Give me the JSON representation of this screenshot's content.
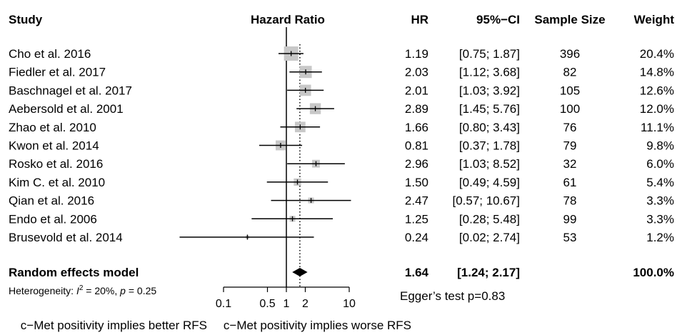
{
  "chart_data": {
    "type": "forest",
    "title": "",
    "headers": {
      "study": "Study",
      "effect": "Hazard Ratio",
      "hr": "HR",
      "ci": "95%−CI",
      "sample": "Sample Size",
      "weight": "Weight"
    },
    "studies": [
      {
        "name": "Cho et al. 2016",
        "hr": 1.19,
        "lo": 0.75,
        "hi": 1.87,
        "hr_text": "1.19",
        "ci_text": "[0.75; 1.87]",
        "n": "396",
        "w": 20.4,
        "w_text": "20.4%"
      },
      {
        "name": "Fiedler et al. 2017",
        "hr": 2.03,
        "lo": 1.12,
        "hi": 3.68,
        "hr_text": "2.03",
        "ci_text": "[1.12; 3.68]",
        "n": "82",
        "w": 14.8,
        "w_text": "14.8%"
      },
      {
        "name": "Baschnagel et al. 2017",
        "hr": 2.01,
        "lo": 1.03,
        "hi": 3.92,
        "hr_text": "2.01",
        "ci_text": "[1.03; 3.92]",
        "n": "105",
        "w": 12.6,
        "w_text": "12.6%"
      },
      {
        "name": "Aebersold et al. 2001",
        "hr": 2.89,
        "lo": 1.45,
        "hi": 5.76,
        "hr_text": "2.89",
        "ci_text": "[1.45; 5.76]",
        "n": "100",
        "w": 12.0,
        "w_text": "12.0%"
      },
      {
        "name": "Zhao et al. 2010",
        "hr": 1.66,
        "lo": 0.8,
        "hi": 3.43,
        "hr_text": "1.66",
        "ci_text": "[0.80; 3.43]",
        "n": "76",
        "w": 11.1,
        "w_text": "11.1%"
      },
      {
        "name": "Kwon et al. 2014",
        "hr": 0.81,
        "lo": 0.37,
        "hi": 1.78,
        "hr_text": "0.81",
        "ci_text": "[0.37; 1.78]",
        "n": "79",
        "w": 9.8,
        "w_text": "9.8%"
      },
      {
        "name": "Rosko et al. 2016",
        "hr": 2.96,
        "lo": 1.03,
        "hi": 8.52,
        "hr_text": "2.96",
        "ci_text": "[1.03; 8.52]",
        "n": "32",
        "w": 6.0,
        "w_text": "6.0%"
      },
      {
        "name": "Kim C. et al. 2010",
        "hr": 1.5,
        "lo": 0.49,
        "hi": 4.59,
        "hr_text": "1.50",
        "ci_text": "[0.49; 4.59]",
        "n": "61",
        "w": 5.4,
        "w_text": "5.4%"
      },
      {
        "name": "Qian et al. 2016",
        "hr": 2.47,
        "lo": 0.57,
        "hi": 10.67,
        "hr_text": "2.47",
        "ci_text": "[0.57; 10.67]",
        "n": "78",
        "w": 3.3,
        "w_text": "3.3%"
      },
      {
        "name": "Endo et al. 2006",
        "hr": 1.25,
        "lo": 0.28,
        "hi": 5.48,
        "hr_text": "1.25",
        "ci_text": "[0.28; 5.48]",
        "n": "99",
        "w": 3.3,
        "w_text": "3.3%"
      },
      {
        "name": "Brusevold et al. 2014",
        "hr": 0.24,
        "lo": 0.02,
        "hi": 2.74,
        "hr_text": "0.24",
        "ci_text": "[0.02; 2.74]",
        "n": "53",
        "w": 1.2,
        "w_text": "1.2%"
      }
    ],
    "pooled": {
      "name": "Random effects model",
      "hr": 1.64,
      "lo": 1.24,
      "hi": 2.17,
      "hr_text": "1.64",
      "ci_text": "[1.24; 2.17]",
      "w_text": "100.0%"
    },
    "heterogeneity": {
      "prefix": "Heterogeneity: ",
      "i2_symbol": "I",
      "i2_sup": "2",
      "i2_value": " = 20%, ",
      "p_symbol": "p",
      "p_value": " = 0.25"
    },
    "egger": "Egger’s test p=0.83",
    "x_axis": {
      "scale": "log",
      "ticks": [
        0.1,
        0.5,
        1,
        2,
        10
      ],
      "tick_labels": [
        "0.1",
        "0.5",
        "1",
        "2",
        "10"
      ],
      "xlim": [
        0.1,
        10
      ],
      "reference": 1
    },
    "favours_left": "c−Met positivity implies better RFS",
    "favours_right": "c−Met positivity implies worse RFS"
  }
}
